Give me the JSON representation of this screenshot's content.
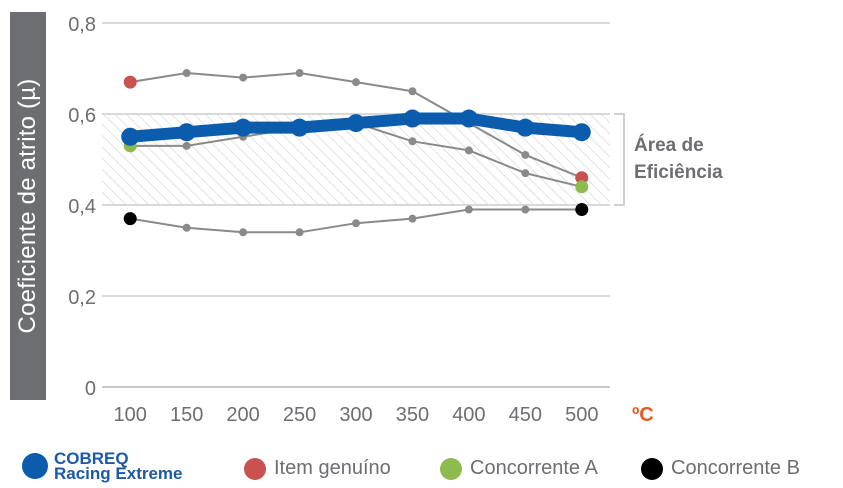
{
  "chart_data": {
    "type": "line",
    "ylabel": "Coeficiente de atrito (µ)",
    "xlabel": "ºC",
    "categories": [
      "100",
      "150",
      "200",
      "250",
      "300",
      "350",
      "400",
      "450",
      "500"
    ],
    "y_ticks": [
      "0",
      "0,2",
      "0,4",
      "0,6",
      "0,8"
    ],
    "ylim": [
      0,
      0.8
    ],
    "grid": true,
    "efficiency_band": {
      "y_min": 0.4,
      "y_max": 0.6,
      "label_line1": "Área de",
      "label_line2": "Eficiência"
    },
    "series": [
      {
        "name": "COBREQ Racing Extreme",
        "name_line1": "COBREQ",
        "name_line2": "Racing Extreme",
        "color": "#0b5cad",
        "values": [
          0.55,
          0.56,
          0.57,
          0.57,
          0.58,
          0.59,
          0.59,
          0.57,
          0.56
        ]
      },
      {
        "name": "Item genuíno",
        "color": "#c9514f",
        "values": [
          0.67,
          0.69,
          0.68,
          0.69,
          0.67,
          0.65,
          0.58,
          0.51,
          0.46
        ]
      },
      {
        "name": "Concorrente A",
        "color": "#8dbb4f",
        "values": [
          0.53,
          0.53,
          0.55,
          0.57,
          0.58,
          0.54,
          0.52,
          0.47,
          0.44
        ]
      },
      {
        "name": "Concorrente B",
        "color": "#000000",
        "values": [
          0.37,
          0.35,
          0.34,
          0.34,
          0.36,
          0.37,
          0.39,
          0.39,
          0.39
        ]
      }
    ]
  }
}
